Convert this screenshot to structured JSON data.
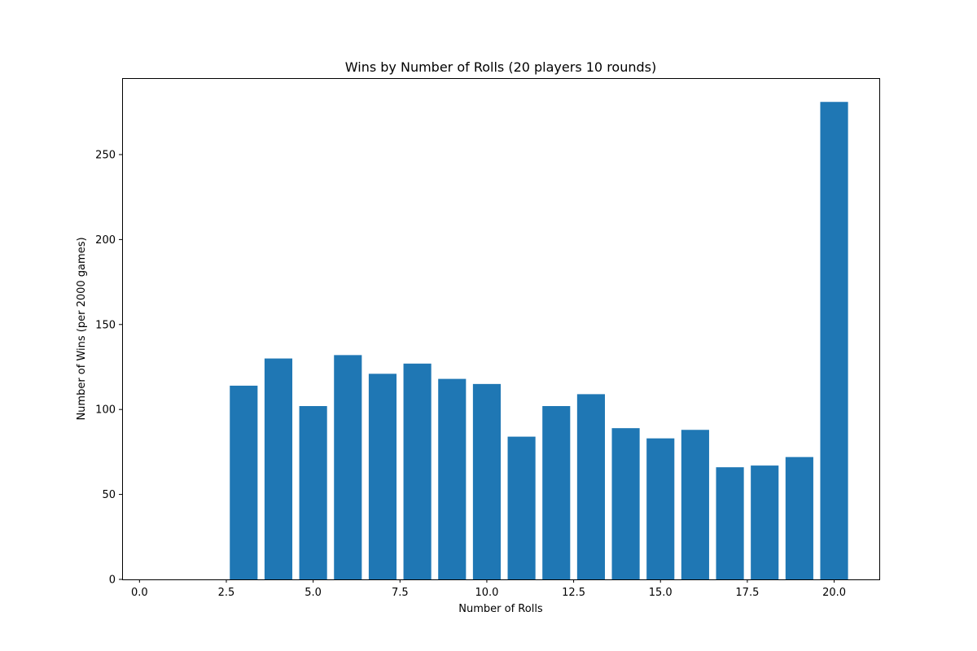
{
  "chart_data": {
    "type": "bar",
    "title": "Wins by Number of Rolls (20 players 10 rounds)",
    "xlabel": "Number of Rolls",
    "ylabel": "Number of Wins (per 2000 games)",
    "x": [
      3,
      4,
      5,
      6,
      7,
      8,
      9,
      10,
      11,
      12,
      13,
      14,
      15,
      16,
      17,
      18,
      19,
      20
    ],
    "values": [
      114,
      130,
      102,
      132,
      121,
      127,
      118,
      115,
      84,
      102,
      109,
      89,
      83,
      88,
      66,
      67,
      72,
      281
    ],
    "bar_width": 0.8,
    "xlim": [
      -0.5,
      21.3
    ],
    "ylim": [
      0,
      295
    ],
    "xticks": [
      0.0,
      2.5,
      5.0,
      7.5,
      10.0,
      12.5,
      15.0,
      17.5,
      20.0
    ],
    "xtick_labels": [
      "0.0",
      "2.5",
      "5.0",
      "7.5",
      "10.0",
      "12.5",
      "15.0",
      "17.5",
      "20.0"
    ],
    "yticks": [
      0,
      50,
      100,
      150,
      200,
      250
    ],
    "ytick_labels": [
      "0",
      "50",
      "100",
      "150",
      "200",
      "250"
    ],
    "bar_color": "#1f77b4",
    "grid": false,
    "legend": "none"
  }
}
